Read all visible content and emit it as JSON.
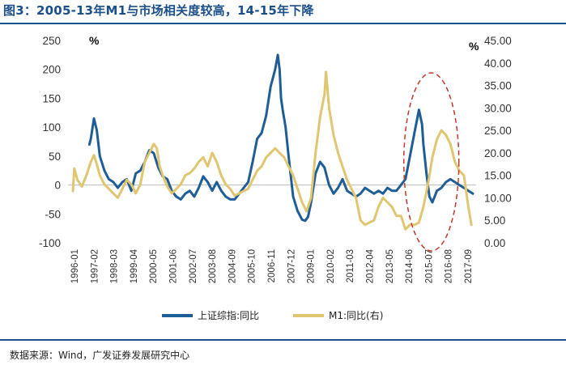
{
  "title": "图3：2005-13年M1与市场相关度较高，14-15年下降",
  "source": "数据来源：Wind，广发证券发展研究中心",
  "chart_data": {
    "type": "line",
    "left_axis": {
      "unit": "%",
      "min": -100,
      "max": 250,
      "ticks": [
        "250",
        "200",
        "150",
        "100",
        "50",
        "0",
        "-50",
        "-100"
      ]
    },
    "right_axis": {
      "unit": "%",
      "min": 0,
      "max": 45,
      "ticks": [
        "45.00",
        "40.00",
        "35.00",
        "30.00",
        "25.00",
        "20.00",
        "15.00",
        "10.00",
        "5.00",
        "0.00"
      ]
    },
    "x_tick_labels": [
      "1996-01",
      "1997-02",
      "1998-03",
      "1999-04",
      "2000-05",
      "2001-06",
      "2002-07",
      "2003-08",
      "2004-09",
      "2005-10",
      "2006-11",
      "2007-12",
      "2009-01",
      "2010-02",
      "2011-03",
      "2012-04",
      "2013-05",
      "2014-06",
      "2015-07",
      "2016-08",
      "2017-09"
    ],
    "series": [
      {
        "name": "上证综指:同比",
        "axis": "left",
        "color": "#1f5d96",
        "x": [
          1996.92,
          1997.0,
          1997.17,
          1997.33,
          1997.5,
          1997.75,
          1998.0,
          1998.25,
          1998.5,
          1998.75,
          1999.0,
          1999.25,
          1999.5,
          1999.75,
          2000.0,
          2000.25,
          2000.5,
          2000.75,
          2001.0,
          2001.25,
          2001.5,
          2001.75,
          2002.0,
          2002.25,
          2002.5,
          2002.75,
          2003.0,
          2003.25,
          2003.5,
          2003.75,
          2004.0,
          2004.25,
          2004.5,
          2004.75,
          2005.0,
          2005.25,
          2005.5,
          2005.75,
          2006.0,
          2006.25,
          2006.5,
          2006.75,
          2007.0,
          2007.25,
          2007.4,
          2007.5,
          2007.58,
          2007.67,
          2007.83,
          2008.0,
          2008.25,
          2008.5,
          2008.75,
          2008.92,
          2009.08,
          2009.25,
          2009.5,
          2009.75,
          2010.0,
          2010.25,
          2010.5,
          2010.75,
          2011.0,
          2011.25,
          2011.5,
          2011.75,
          2012.0,
          2012.25,
          2012.5,
          2012.75,
          2013.0,
          2013.25,
          2013.5,
          2013.75,
          2014.0,
          2014.25,
          2014.5,
          2014.75,
          2015.0,
          2015.25,
          2015.42,
          2015.5,
          2015.67,
          2015.83,
          2016.0,
          2016.25,
          2016.5,
          2016.75,
          2017.0,
          2017.25,
          2017.5,
          2017.75,
          2018.0,
          2018.25
        ],
        "values": [
          70,
          80,
          115,
          95,
          50,
          25,
          10,
          5,
          -5,
          5,
          10,
          -10,
          20,
          25,
          40,
          60,
          55,
          30,
          15,
          10,
          -10,
          -20,
          -25,
          -15,
          -10,
          -20,
          -5,
          15,
          5,
          -10,
          5,
          -10,
          -20,
          -25,
          -25,
          -15,
          -5,
          5,
          40,
          80,
          90,
          120,
          170,
          200,
          225,
          200,
          150,
          130,
          100,
          50,
          -20,
          -45,
          -60,
          -62,
          -55,
          -30,
          20,
          40,
          30,
          0,
          -15,
          -5,
          10,
          -10,
          -15,
          -20,
          -15,
          -5,
          -10,
          -15,
          -10,
          -15,
          -5,
          -10,
          -10,
          0,
          10,
          50,
          90,
          130,
          105,
          70,
          20,
          -20,
          -30,
          -10,
          -5,
          5,
          10,
          5,
          0,
          -5,
          -10,
          -15
        ],
        "legend": "上证综指:同比"
      },
      {
        "name": "M1:同比(右)",
        "axis": "right",
        "color": "#e0c670",
        "x": [
          1996.0,
          1996.08,
          1996.25,
          1996.5,
          1996.75,
          1997.0,
          1997.17,
          1997.33,
          1997.5,
          1997.75,
          1998.0,
          1998.25,
          1998.5,
          1998.75,
          1999.0,
          1999.25,
          1999.5,
          1999.75,
          2000.0,
          2000.25,
          2000.5,
          2000.67,
          2000.83,
          2001.0,
          2001.25,
          2001.5,
          2001.75,
          2002.0,
          2002.25,
          2002.5,
          2002.75,
          2003.0,
          2003.25,
          2003.5,
          2003.75,
          2004.0,
          2004.25,
          2004.5,
          2004.75,
          2005.0,
          2005.25,
          2005.5,
          2005.75,
          2006.0,
          2006.25,
          2006.5,
          2006.75,
          2007.0,
          2007.25,
          2007.5,
          2007.75,
          2008.0,
          2008.25,
          2008.5,
          2008.75,
          2009.0,
          2009.25,
          2009.5,
          2009.75,
          2010.0,
          2010.08,
          2010.25,
          2010.5,
          2010.75,
          2011.0,
          2011.25,
          2011.5,
          2011.75,
          2012.0,
          2012.25,
          2012.5,
          2012.75,
          2013.0,
          2013.25,
          2013.5,
          2013.75,
          2014.0,
          2014.25,
          2014.5,
          2014.75,
          2015.0,
          2015.25,
          2015.5,
          2015.75,
          2016.0,
          2016.25,
          2016.5,
          2016.75,
          2017.0,
          2017.25,
          2017.5,
          2017.75,
          2018.0,
          2018.17
        ],
        "values": [
          11.5,
          16.5,
          14,
          12.5,
          15,
          18,
          19.5,
          17.5,
          15,
          13,
          12,
          11,
          10,
          12,
          14,
          13,
          11,
          13,
          18,
          20,
          22,
          21,
          17,
          15,
          12.5,
          11,
          12,
          13,
          15,
          15.5,
          16.5,
          18,
          19,
          17,
          20,
          18,
          15,
          13,
          12,
          10.5,
          11,
          11.5,
          12,
          14,
          16,
          17,
          19,
          20,
          21,
          20,
          19,
          17,
          15,
          12,
          9,
          7,
          10,
          20,
          28,
          33,
          38,
          30,
          24,
          20,
          17,
          14,
          12,
          10,
          5,
          4,
          4.5,
          5,
          8,
          10,
          9,
          8,
          6,
          6,
          3,
          4,
          4,
          4.5,
          8,
          13,
          19,
          23,
          25,
          24,
          22,
          18,
          16,
          15,
          8,
          4
        ],
        "legend": "M1:同比(右)"
      }
    ],
    "annotation": "dashed-red-ellipse around 2015-2016"
  }
}
